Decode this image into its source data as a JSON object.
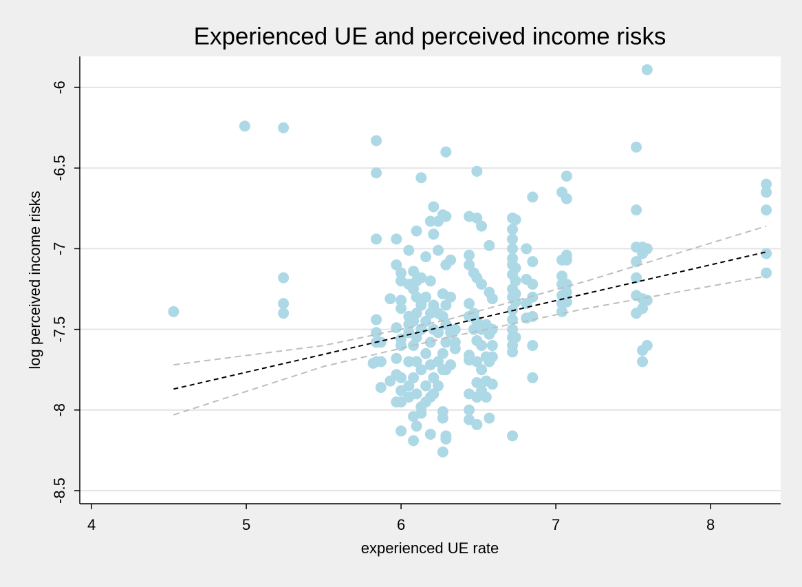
{
  "chart_data": {
    "type": "scatter",
    "title": "Experienced UE and perceived income risks",
    "xlabel": "experienced UE rate",
    "ylabel": "log perceived income risks",
    "color": "#add8e6",
    "xlim": [
      3.924,
      8.453
    ],
    "ylim": [
      -8.581,
      -5.808
    ],
    "xticks": [
      4,
      5,
      6,
      7,
      8
    ],
    "yticks": [
      -6,
      -6.5,
      -7,
      -7.5,
      -8,
      -8.5
    ],
    "grid": true,
    "x": [
      4.53,
      4.99,
      5.24,
      5.24,
      5.24,
      5.24,
      5.84,
      5.84,
      5.84,
      5.84,
      5.84,
      5.84,
      5.84,
      5.87,
      5.87,
      5.87,
      5.82,
      5.93,
      5.93,
      5.97,
      5.97,
      5.97,
      5.97,
      5.97,
      5.97,
      6.0,
      6.0,
      6.0,
      6.0,
      6.0,
      6.0,
      6.0,
      6.0,
      6.0,
      6.0,
      6.05,
      6.05,
      6.05,
      6.05,
      6.05,
      6.05,
      6.05,
      6.05,
      6.08,
      6.08,
      6.08,
      6.08,
      6.08,
      6.08,
      6.08,
      6.1,
      6.1,
      6.1,
      6.1,
      6.1,
      6.1,
      6.1,
      6.1,
      6.13,
      6.13,
      6.13,
      6.13,
      6.13,
      6.13,
      6.13,
      6.16,
      6.16,
      6.16,
      6.16,
      6.16,
      6.16,
      6.19,
      6.19,
      6.19,
      6.19,
      6.19,
      6.19,
      6.19,
      6.21,
      6.21,
      6.21,
      6.21,
      6.21,
      6.21,
      6.24,
      6.24,
      6.24,
      6.24,
      6.24,
      6.24,
      6.27,
      6.27,
      6.27,
      6.27,
      6.27,
      6.27,
      6.27,
      6.27,
      6.29,
      6.29,
      6.29,
      6.29,
      6.29,
      6.29,
      6.29,
      6.29,
      6.29,
      6.32,
      6.32,
      6.32,
      6.32,
      6.35,
      6.35,
      6.35,
      6.44,
      6.44,
      6.44,
      6.44,
      6.44,
      6.44,
      6.44,
      6.44,
      6.44,
      6.44,
      6.47,
      6.47,
      6.47,
      6.49,
      6.49,
      6.49,
      6.49,
      6.49,
      6.49,
      6.49,
      6.49,
      6.49,
      6.52,
      6.52,
      6.52,
      6.52,
      6.52,
      6.52,
      6.55,
      6.55,
      6.55,
      6.55,
      6.57,
      6.57,
      6.57,
      6.57,
      6.57,
      6.59,
      6.59,
      6.59,
      6.59,
      6.59,
      6.72,
      6.72,
      6.72,
      6.72,
      6.72,
      6.72,
      6.72,
      6.72,
      6.72,
      6.72,
      6.72,
      6.72,
      6.72,
      6.72,
      6.72,
      6.72,
      6.74,
      6.74,
      6.74,
      6.74,
      6.74,
      6.74,
      6.81,
      6.81,
      6.81,
      6.81,
      6.85,
      6.85,
      6.85,
      6.85,
      6.85,
      6.85,
      6.85,
      7.04,
      7.04,
      7.04,
      7.04,
      7.04,
      7.04,
      7.04,
      7.07,
      7.07,
      7.07,
      7.07,
      7.07,
      7.07,
      7.07,
      7.52,
      7.52,
      7.52,
      7.52,
      7.52,
      7.52,
      7.52,
      7.56,
      7.56,
      7.56,
      7.56,
      7.56,
      7.56,
      7.59,
      7.59,
      7.59,
      7.59,
      8.36,
      8.36,
      8.36,
      8.36,
      8.36
    ],
    "values": [
      -7.39,
      -6.24,
      -6.25,
      -7.18,
      -7.34,
      -7.4,
      -6.33,
      -6.53,
      -6.94,
      -7.44,
      -7.52,
      -7.58,
      -7.7,
      -7.7,
      -7.86,
      -7.58,
      -7.71,
      -7.31,
      -7.82,
      -7.1,
      -6.94,
      -7.49,
      -7.68,
      -7.78,
      -7.95,
      -7.2,
      -7.15,
      -7.32,
      -7.37,
      -7.56,
      -7.6,
      -7.8,
      -7.88,
      -7.95,
      -8.13,
      -7.01,
      -7.22,
      -7.42,
      -7.47,
      -7.52,
      -7.7,
      -7.85,
      -7.92,
      -7.14,
      -7.25,
      -7.45,
      -7.6,
      -7.8,
      -8.04,
      -8.19,
      -6.89,
      -7.2,
      -7.3,
      -7.4,
      -7.55,
      -7.7,
      -7.9,
      -8.1,
      -6.56,
      -7.18,
      -7.35,
      -7.5,
      -7.75,
      -7.98,
      -8.02,
      -7.05,
      -7.3,
      -7.45,
      -7.65,
      -7.85,
      -7.95,
      -6.83,
      -7.2,
      -7.4,
      -7.58,
      -7.72,
      -7.92,
      -8.15,
      -6.74,
      -6.91,
      -7.35,
      -7.5,
      -7.8,
      -7.9,
      -6.83,
      -7.01,
      -7.4,
      -7.52,
      -7.7,
      -7.85,
      -6.79,
      -7.28,
      -7.42,
      -7.65,
      -7.75,
      -8.01,
      -8.05,
      -8.26,
      -6.4,
      -6.8,
      -7.1,
      -7.35,
      -7.47,
      -7.58,
      -7.75,
      -8.16,
      -8.18,
      -7.07,
      -7.3,
      -7.52,
      -7.72,
      -7.5,
      -7.58,
      -7.62,
      -6.8,
      -7.04,
      -7.1,
      -7.34,
      -7.42,
      -7.66,
      -7.69,
      -7.9,
      -8.0,
      -8.06,
      -7.15,
      -7.4,
      -7.5,
      -6.52,
      -6.81,
      -7.18,
      -7.45,
      -7.57,
      -7.7,
      -7.83,
      -7.92,
      -8.09,
      -6.86,
      -7.22,
      -7.5,
      -7.6,
      -7.75,
      -7.88,
      -7.47,
      -7.67,
      -7.82,
      -7.92,
      -6.98,
      -7.27,
      -7.53,
      -7.7,
      -8.05,
      -7.31,
      -7.5,
      -7.6,
      -7.67,
      -7.84,
      -6.81,
      -6.88,
      -6.94,
      -7.0,
      -7.06,
      -7.1,
      -7.16,
      -7.25,
      -7.3,
      -7.38,
      -7.44,
      -7.5,
      -7.55,
      -7.6,
      -7.64,
      -8.16,
      -6.82,
      -7.12,
      -7.2,
      -7.28,
      -7.33,
      -7.55,
      -7.0,
      -7.19,
      -7.34,
      -7.43,
      -6.68,
      -7.08,
      -7.22,
      -7.3,
      -7.42,
      -7.6,
      -7.8,
      -6.65,
      -7.07,
      -7.17,
      -7.22,
      -7.29,
      -7.34,
      -7.39,
      -6.55,
      -6.69,
      -7.04,
      -7.07,
      -7.22,
      -7.27,
      -7.33,
      -6.37,
      -6.76,
      -6.99,
      -7.08,
      -7.18,
      -7.29,
      -7.4,
      -6.99,
      -7.03,
      -7.31,
      -7.37,
      -7.63,
      -7.7,
      -5.89,
      -7.0,
      -7.32,
      -7.6,
      -6.6,
      -6.65,
      -6.76,
      -7.03,
      -7.15
    ],
    "lines": [
      {
        "x": [
          4.53,
          8.36
        ],
        "values": [
          -7.87,
          -7.02
        ],
        "color": "#000000",
        "dash": "7 5"
      },
      {
        "x": [
          4.53,
          5.5,
          6.3,
          7.2,
          8.36
        ],
        "values": [
          -7.72,
          -7.6,
          -7.44,
          -7.2,
          -6.86
        ],
        "color": "#bdbdbd",
        "dash": "9 6"
      },
      {
        "x": [
          4.53,
          5.5,
          6.3,
          7.2,
          8.36
        ],
        "values": [
          -8.03,
          -7.73,
          -7.55,
          -7.37,
          -7.17
        ],
        "color": "#bdbdbd",
        "dash": "9 6"
      }
    ]
  }
}
